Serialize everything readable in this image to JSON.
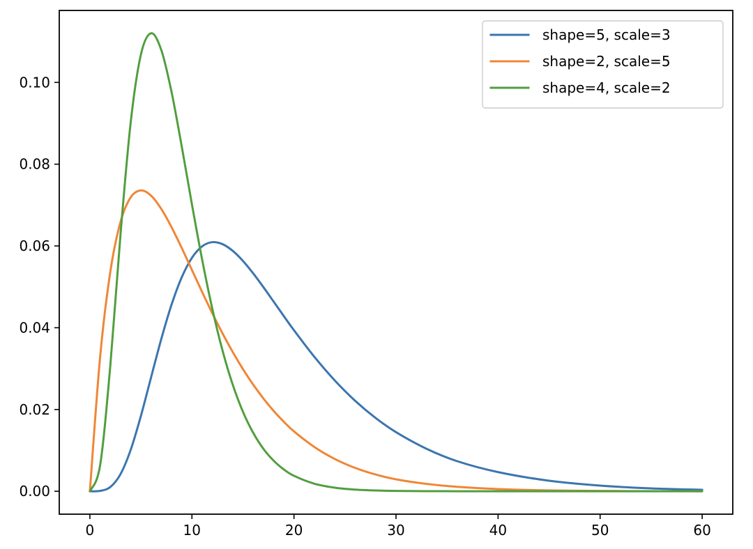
{
  "chart_data": {
    "type": "line",
    "title": "",
    "xlabel": "",
    "ylabel": "",
    "xlim": [
      -3,
      63
    ],
    "ylim": [
      -0.0056,
      0.1176
    ],
    "x_ticks": [
      0,
      10,
      20,
      30,
      40,
      50,
      60
    ],
    "x_tick_labels": [
      "0",
      "10",
      "20",
      "30",
      "40",
      "50",
      "60"
    ],
    "y_ticks": [
      0.0,
      0.02,
      0.04,
      0.06,
      0.08,
      0.1
    ],
    "y_tick_labels": [
      "0.00",
      "0.02",
      "0.04",
      "0.06",
      "0.08",
      "0.10"
    ],
    "grid": false,
    "legend_position": "top-right",
    "x": [
      0,
      1,
      2,
      3,
      4,
      5,
      6,
      7,
      8,
      9,
      10,
      11,
      12,
      13,
      14,
      15,
      16,
      17,
      18,
      19,
      20,
      22,
      24,
      26,
      28,
      30,
      33,
      36,
      40,
      45,
      50,
      55,
      60
    ],
    "series": [
      {
        "name": "shape=5, scale=3",
        "color": "#3b75af",
        "values": [
          0,
          9.3e-05,
          0.00104,
          0.00419,
          0.01013,
          0.01843,
          0.02789,
          0.03727,
          0.04563,
          0.05232,
          0.05709,
          0.0599,
          0.06093,
          0.06044,
          0.0588,
          0.05634,
          0.0533,
          0.04994,
          0.04641,
          0.04286,
          0.03938,
          0.03287,
          0.02709,
          0.02211,
          0.01792,
          0.01446,
          0.01038,
          0.00735,
          0.00469,
          0.00258,
          0.00138,
          0.00071,
          0.00036
        ]
      },
      {
        "name": "shape=2, scale=5",
        "color": "#ef8636",
        "values": [
          0,
          0.03275,
          0.05363,
          0.06586,
          0.0719,
          0.07358,
          0.07229,
          0.06904,
          0.0646,
          0.05951,
          0.05413,
          0.04874,
          0.04354,
          0.03862,
          0.03405,
          0.02988,
          0.0261,
          0.02271,
          0.01968,
          0.01701,
          0.01465,
          0.01083,
          0.0079,
          0.00571,
          0.0041,
          0.00292,
          0.0018,
          0.00109,
          0.00054,
          0.00022,
          9e-05,
          3e-05,
          1e-05
        ]
      },
      {
        "name": "shape=4, scale=2",
        "color": "#519e3e",
        "values": [
          0,
          0.00632,
          0.03066,
          0.06276,
          0.09022,
          0.10681,
          0.11202,
          0.1079,
          0.0977,
          0.08436,
          0.07019,
          0.05667,
          0.04462,
          0.0344,
          0.02606,
          0.01944,
          0.01431,
          0.0104,
          0.0075,
          0.00535,
          0.00378,
          0.00185,
          0.00088,
          0.00041,
          0.00019,
          9e-05,
          3e-05,
          1e-05,
          0,
          0,
          0,
          0,
          0
        ]
      }
    ]
  }
}
